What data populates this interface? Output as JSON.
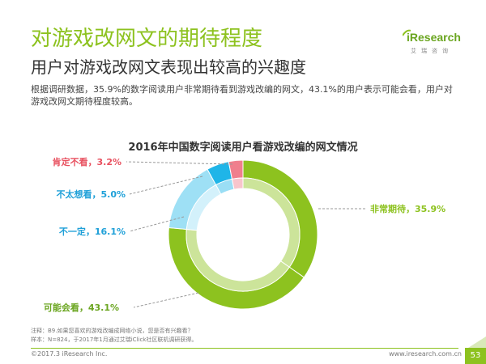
{
  "header": {
    "title": "对游戏改网文的期待程度",
    "subtitle": "用户对游戏改网文表现出较高的兴趣度",
    "description": "根据调研数据，35.9%的数字阅读用户非常期待看到游戏改编的网文，43.1%的用户表示可能会看，用户对游戏改网文期待程度较高。"
  },
  "logo": {
    "word": "iResearch",
    "sub": "艾瑞咨询"
  },
  "chart_data": {
    "type": "pie",
    "title": "2016年中国数字阅读用户看游戏改编的网文情况",
    "slices": [
      {
        "label": "非常期待",
        "value": 35.9,
        "display": "非常期待，35.9%",
        "color": "#8dc21f"
      },
      {
        "label": "可能会看",
        "value": 43.1,
        "display": "可能会看，43.1%",
        "color": "#8dc21f"
      },
      {
        "label": "不一定",
        "value": 16.1,
        "display": "不一定，16.1%",
        "color": "#9ee0f5"
      },
      {
        "label": "不太想看",
        "value": 5.0,
        "display": "不太想看，5.0%",
        "color": "#1fb5e8"
      },
      {
        "label": "肯定不看",
        "value": 3.2,
        "display": "肯定不看，3.2%",
        "color": "#f07f8d"
      }
    ],
    "label_colors": {
      "非常期待": "#8dc21f",
      "可能会看": "#6aa51f",
      "不一定": "#1fa0d8",
      "不太想看": "#1fa0d8",
      "肯定不看": "#e8505f"
    },
    "legend": "none"
  },
  "notes": {
    "line1": "注释：B9.如果您喜欢的游戏改编成网络小说，您是否有兴趣看？",
    "line2": "样本：N=824，于2017年1月通过艾瑞iClick社区联机调研获得。"
  },
  "footer": {
    "copyright": "©2017.3 iResearch Inc.",
    "website": "www.iresearch.com.cn",
    "page": "53"
  }
}
